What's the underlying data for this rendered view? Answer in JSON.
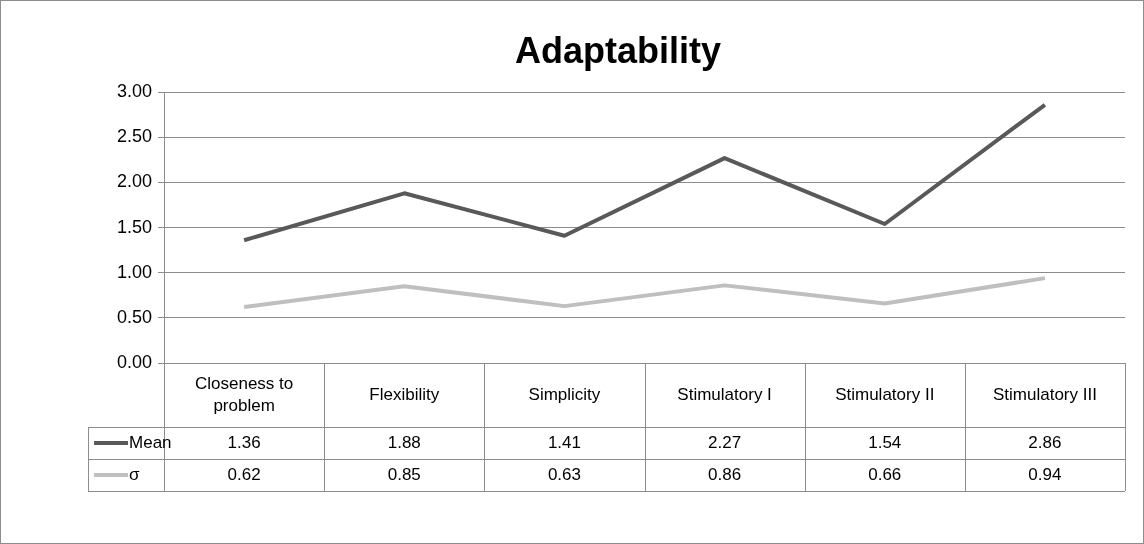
{
  "chart_data": {
    "type": "line",
    "title": "Adaptability",
    "categories": [
      "Closeness to problem",
      "Flexibility",
      "Simplicity",
      "Stimulatory I",
      "Stimulatory II",
      "Stimulatory III"
    ],
    "series": [
      {
        "name": "Mean",
        "color": "#595959",
        "values": [
          1.36,
          1.88,
          1.41,
          2.27,
          1.54,
          2.86
        ]
      },
      {
        "name": "σ",
        "color": "#bfbfbf",
        "values": [
          0.62,
          0.85,
          0.63,
          0.86,
          0.66,
          0.94
        ]
      }
    ],
    "ylim": [
      0,
      3
    ],
    "yticks": [
      {
        "value": 0,
        "label": "0.00"
      },
      {
        "value": 0.5,
        "label": "0.50"
      },
      {
        "value": 1,
        "label": "1.00"
      },
      {
        "value": 1.5,
        "label": "1.50"
      },
      {
        "value": 2,
        "label": "2.00"
      },
      {
        "value": 2.5,
        "label": "2.50"
      },
      {
        "value": 3,
        "label": "3.00"
      }
    ],
    "grid": "y",
    "legend": "bottom",
    "data_labels": true,
    "marker": "none",
    "line_style": "solid"
  }
}
